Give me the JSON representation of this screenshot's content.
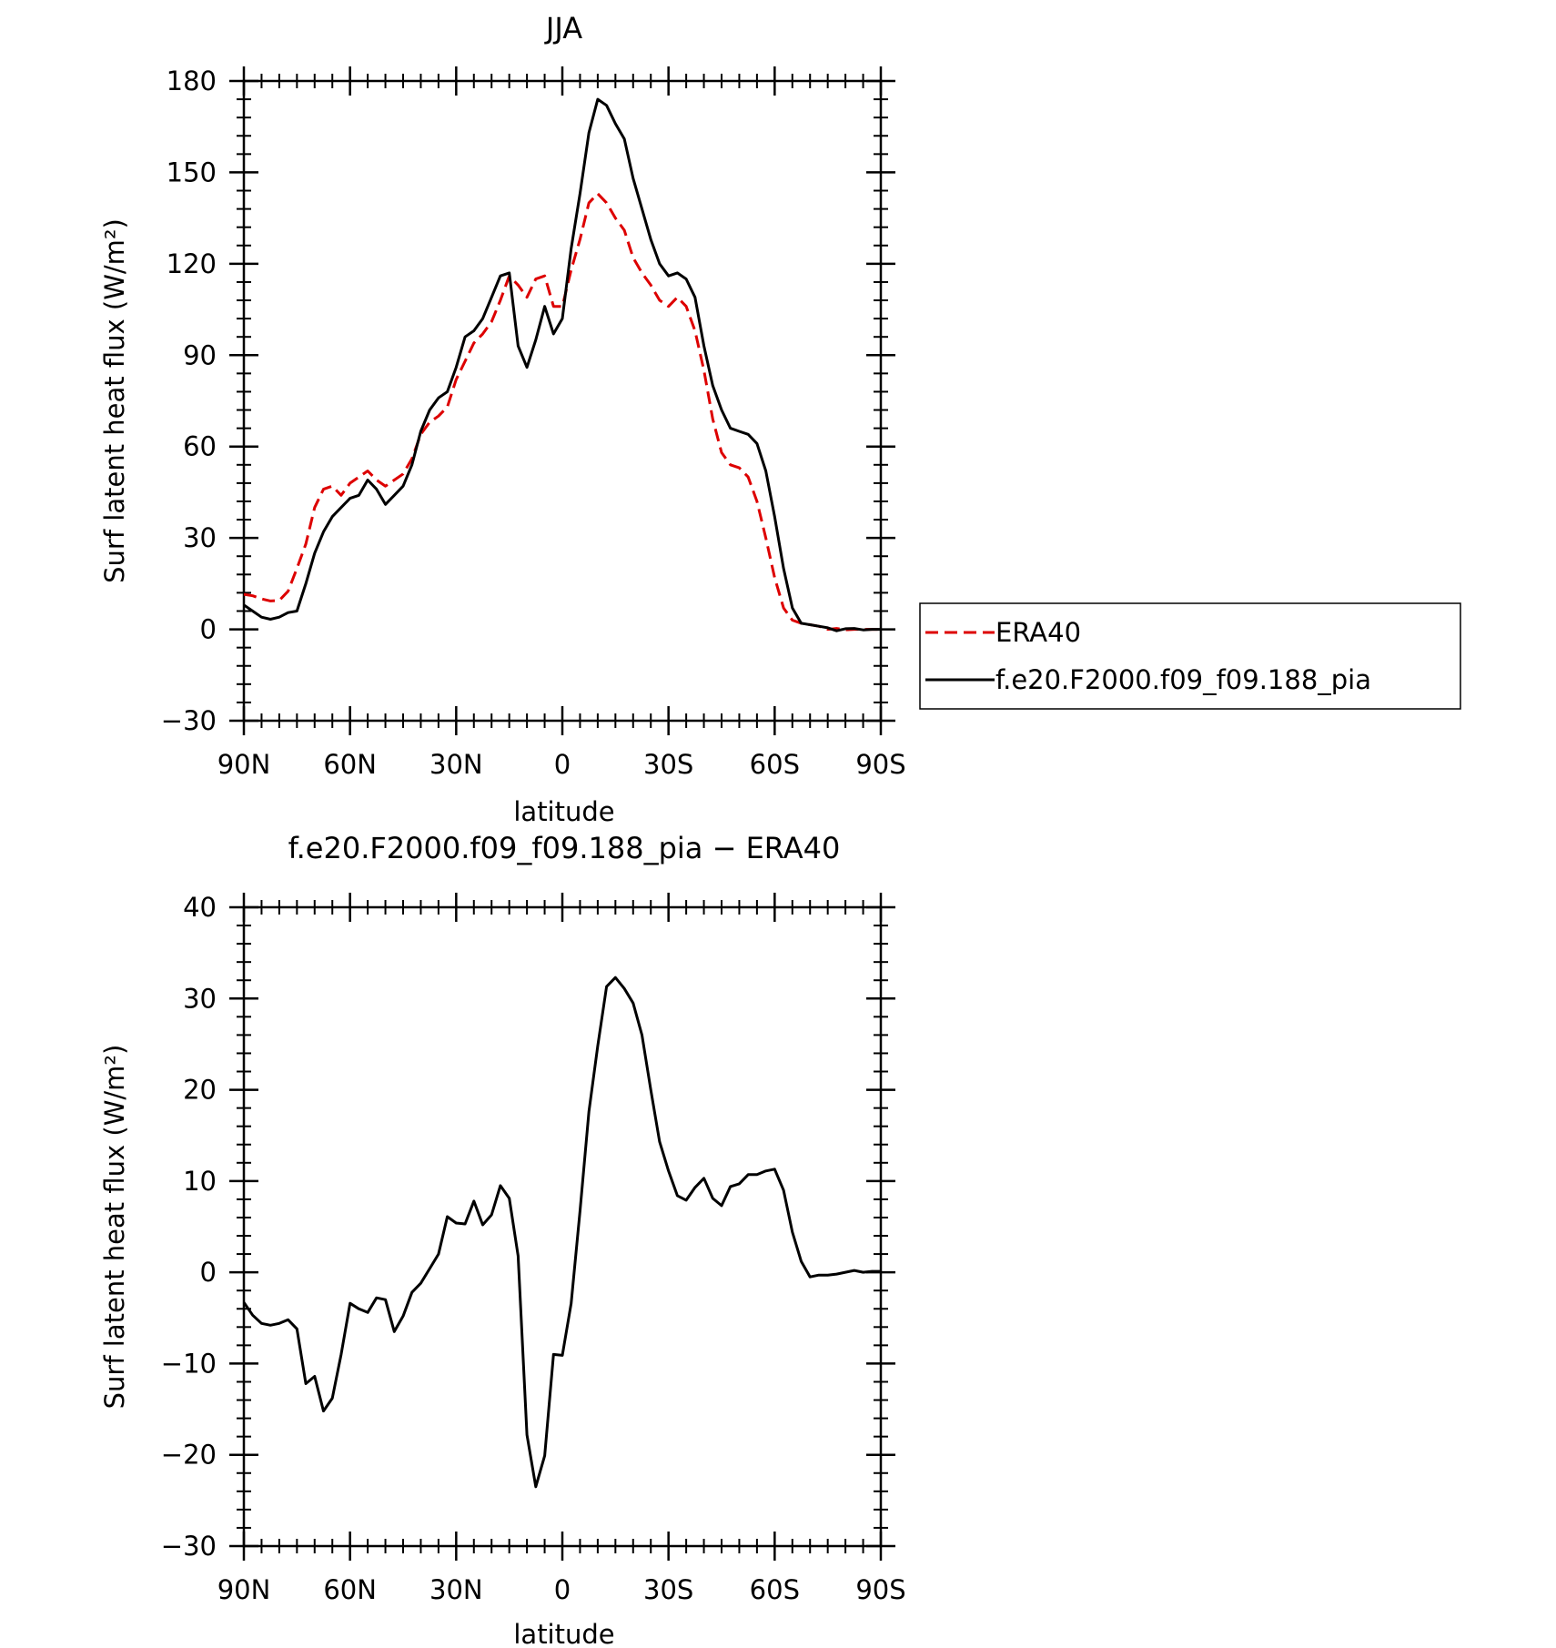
{
  "chart_data": [
    {
      "type": "line",
      "title": "JJA",
      "xlabel": "latitude",
      "ylabel": "Surf latent heat flux (W/m²)",
      "ylim": [
        -30,
        180
      ],
      "xlim": [
        -90,
        90
      ],
      "yticks": [
        -30,
        0,
        30,
        60,
        90,
        120,
        150,
        180
      ],
      "xticks": [
        {
          "value": -90,
          "label": "90N"
        },
        {
          "value": -60,
          "label": "60N"
        },
        {
          "value": -30,
          "label": "30N"
        },
        {
          "value": 0,
          "label": "0"
        },
        {
          "value": 30,
          "label": "30S"
        },
        {
          "value": 60,
          "label": "60S"
        },
        {
          "value": 90,
          "label": "90S"
        }
      ],
      "legend": {
        "placement": "right",
        "entries": [
          "ERA40",
          "f.e20.F2000.f09_f09.188_pia"
        ]
      },
      "x": [
        -90,
        -87.5,
        -85,
        -82.5,
        -80,
        -77.5,
        -75,
        -72.5,
        -70,
        -67.5,
        -65,
        -62.5,
        -60,
        -57.5,
        -55,
        -52.5,
        -50,
        -47.5,
        -45,
        -42.5,
        -40,
        -37.5,
        -35,
        -32.5,
        -30,
        -27.5,
        -25,
        -22.5,
        -20,
        -17.5,
        -15,
        -12.5,
        -10,
        -7.5,
        -5,
        -2.5,
        0,
        2.5,
        5,
        7.5,
        10,
        12.5,
        15,
        17.5,
        20,
        22.5,
        25,
        27.5,
        30,
        32.5,
        35,
        37.5,
        40,
        42.5,
        45,
        47.5,
        50,
        52.5,
        55,
        57.5,
        60,
        62.5,
        65,
        67.5,
        70,
        72.5,
        75,
        77.5,
        80,
        82.5,
        85,
        87.5,
        90
      ],
      "series": [
        {
          "name": "ERA40",
          "color": "#dd0000",
          "dash": true,
          "values": [
            11.5,
            11,
            10,
            9.3,
            9.5,
            12.5,
            20,
            28,
            40,
            46,
            47,
            44,
            48,
            50,
            52,
            49,
            47,
            49,
            51,
            56,
            64,
            68,
            70,
            73,
            82,
            88,
            94,
            97,
            101,
            108,
            116,
            113,
            109,
            115,
            116,
            106,
            106,
            118,
            128,
            140,
            143,
            140,
            135,
            131,
            122,
            117,
            113,
            108,
            106,
            109,
            106,
            98,
            85,
            69,
            58,
            54,
            53,
            50,
            42,
            30,
            17,
            7,
            3,
            2,
            1.5,
            1,
            0,
            0.3,
            -0.2,
            0,
            0,
            0,
            0
          ]
        },
        {
          "name": "f.e20.F2000.f09_f09.188_pia",
          "color": "#000000",
          "dash": false,
          "values": [
            8,
            6,
            4,
            3.3,
            4,
            5.5,
            6,
            15,
            25,
            32,
            37,
            40,
            43,
            44,
            49,
            46,
            41,
            44,
            47,
            54,
            65,
            72,
            76,
            78,
            86,
            96,
            98,
            102,
            109,
            116,
            117,
            93,
            86,
            95,
            106,
            97,
            102,
            125,
            143,
            163,
            174,
            172,
            166,
            161,
            148,
            138,
            128,
            120,
            116,
            117,
            115,
            109,
            93,
            80,
            72,
            66,
            65,
            64,
            61,
            52,
            37,
            20,
            7,
            2,
            1.5,
            1,
            0.5,
            -0.5,
            0.2,
            0.3,
            -0.2,
            0,
            0
          ]
        }
      ]
    },
    {
      "type": "line",
      "title": "f.e20.F2000.f09_f09.188_pia − ERA40",
      "xlabel": "latitude",
      "ylabel": "Surf latent heat flux (W/m²)",
      "ylim": [
        -30,
        40
      ],
      "xlim": [
        -90,
        90
      ],
      "yticks": [
        -30,
        -20,
        -10,
        0,
        10,
        20,
        30,
        40
      ],
      "xticks": [
        {
          "value": -90,
          "label": "90N"
        },
        {
          "value": -60,
          "label": "60N"
        },
        {
          "value": -30,
          "label": "30N"
        },
        {
          "value": 0,
          "label": "0"
        },
        {
          "value": 30,
          "label": "30S"
        },
        {
          "value": 60,
          "label": "60S"
        },
        {
          "value": 90,
          "label": "90S"
        }
      ],
      "x": [
        -90,
        -87.5,
        -85,
        -82.5,
        -80,
        -77.5,
        -75,
        -72.5,
        -70,
        -67.5,
        -65,
        -62.5,
        -60,
        -57.5,
        -55,
        -52.5,
        -50,
        -47.5,
        -45,
        -42.5,
        -40,
        -37.5,
        -35,
        -32.5,
        -30,
        -27.5,
        -25,
        -22.5,
        -20,
        -17.5,
        -15,
        -12.5,
        -10,
        -7.5,
        -5,
        -2.5,
        0,
        2.5,
        5,
        7.5,
        10,
        12.5,
        15,
        17.5,
        20,
        22.5,
        25,
        27.5,
        30,
        32.5,
        35,
        37.5,
        40,
        42.5,
        45,
        47.5,
        50,
        52.5,
        55,
        57.5,
        60,
        62.5,
        65,
        67.5,
        70,
        72.5,
        75,
        77.5,
        80,
        82.5,
        85,
        87.5,
        90
      ],
      "series": [
        {
          "color": "#000000",
          "dash": false,
          "values": [
            -3.3,
            -4.7,
            -5.6,
            -5.8,
            -5.6,
            -5.2,
            -6.2,
            -12.2,
            -11.4,
            -15.2,
            -13.8,
            -9,
            -3.4,
            -4,
            -4.4,
            -2.8,
            -3,
            -6.5,
            -4.8,
            -2.2,
            -1.2,
            0.4,
            2,
            6.1,
            5.4,
            5.3,
            7.8,
            5.2,
            6.3,
            9.5,
            8.1,
            1.8,
            -17.8,
            -23.5,
            -20.1,
            -9,
            -9.1,
            -3.4,
            6.7,
            17.6,
            24.8,
            31.3,
            32.3,
            31.1,
            29.5,
            26,
            20,
            14.3,
            11.1,
            8.4,
            7.9,
            9.3,
            10.3,
            8.1,
            7.3,
            9.4,
            9.7,
            10.7,
            10.7,
            11.1,
            11.3,
            9,
            4.4,
            1.2,
            -0.5,
            -0.3,
            -0.3,
            -0.2,
            0,
            0.2,
            0,
            0.1,
            0.1
          ]
        }
      ]
    }
  ]
}
